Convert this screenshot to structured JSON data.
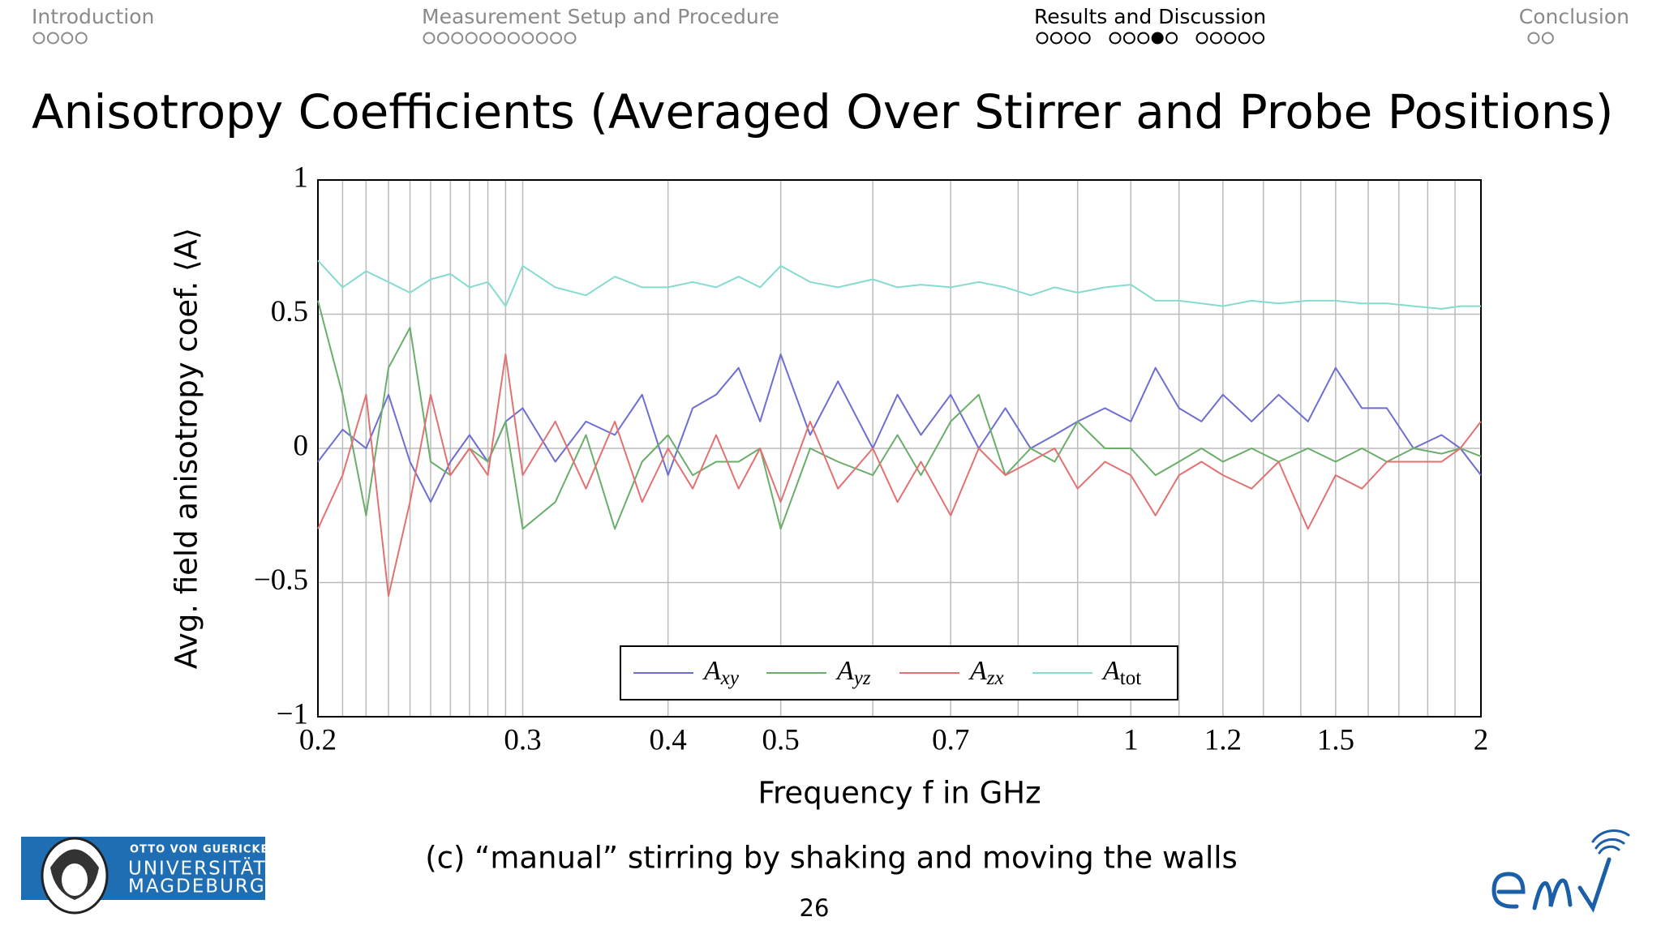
{
  "header": {
    "sections": [
      {
        "title": "Introduction"
      },
      {
        "title": "Measurement Setup and Procedure"
      },
      {
        "title": "Results and Discussion"
      },
      {
        "title": "Conclusion"
      }
    ]
  },
  "title": "Anisotropy Coefficients (Averaged Over Stirrer and Probe Positions)",
  "chart_data": {
    "type": "line",
    "xlabel": "Frequency f in GHz",
    "ylabel": "Avg. field anisotropy coef. ⟨A⟩",
    "x": [
      0.2,
      0.21,
      0.22,
      0.23,
      0.24,
      0.25,
      0.26,
      0.27,
      0.28,
      0.29,
      0.3,
      0.32,
      0.34,
      0.36,
      0.38,
      0.4,
      0.42,
      0.44,
      0.46,
      0.48,
      0.5,
      0.53,
      0.56,
      0.6,
      0.63,
      0.66,
      0.7,
      0.74,
      0.78,
      0.82,
      0.86,
      0.9,
      0.95,
      1,
      1.05,
      1.1,
      1.15,
      1.2,
      1.27,
      1.34,
      1.42,
      1.5,
      1.58,
      1.66,
      1.75,
      1.85,
      1.92,
      2
    ],
    "series": [
      {
        "name": "Axy",
        "color": "#6e6ed2",
        "values": [
          -0.05,
          0.07,
          0.0,
          0.2,
          -0.05,
          -0.2,
          -0.05,
          0.05,
          -0.05,
          0.1,
          0.15,
          -0.05,
          0.1,
          0.05,
          0.2,
          -0.1,
          0.15,
          0.2,
          0.3,
          0.1,
          0.35,
          0.05,
          0.25,
          0.0,
          0.2,
          0.05,
          0.2,
          0.0,
          0.15,
          0.0,
          0.05,
          0.1,
          0.15,
          0.1,
          0.3,
          0.15,
          0.1,
          0.2,
          0.1,
          0.2,
          0.1,
          0.3,
          0.15,
          0.15,
          0.0,
          0.05,
          0.0,
          -0.1
        ]
      },
      {
        "name": "Ayz",
        "color": "#6aae6a",
        "values": [
          0.55,
          0.2,
          -0.25,
          0.3,
          0.45,
          -0.05,
          -0.1,
          0.0,
          -0.05,
          0.1,
          -0.3,
          -0.2,
          0.05,
          -0.3,
          -0.05,
          0.05,
          -0.1,
          -0.05,
          -0.05,
          0.0,
          -0.3,
          0.0,
          -0.05,
          -0.1,
          0.05,
          -0.1,
          0.1,
          0.2,
          -0.1,
          0.0,
          -0.05,
          0.1,
          0.0,
          0.0,
          -0.1,
          -0.05,
          0.0,
          -0.05,
          0.0,
          -0.05,
          0.0,
          -0.05,
          0.0,
          -0.05,
          0.0,
          -0.02,
          0.0,
          -0.03
        ]
      },
      {
        "name": "Azx",
        "color": "#e27272",
        "values": [
          -0.3,
          -0.1,
          0.2,
          -0.55,
          -0.2,
          0.2,
          -0.1,
          0.0,
          -0.1,
          0.35,
          -0.1,
          0.1,
          -0.15,
          0.1,
          -0.2,
          0.0,
          -0.15,
          0.05,
          -0.15,
          0.0,
          -0.2,
          0.1,
          -0.15,
          0.0,
          -0.2,
          -0.05,
          -0.25,
          0.0,
          -0.1,
          -0.05,
          0.0,
          -0.15,
          -0.05,
          -0.1,
          -0.25,
          -0.1,
          -0.05,
          -0.1,
          -0.15,
          -0.05,
          -0.3,
          -0.1,
          -0.15,
          -0.05,
          -0.05,
          -0.05,
          0.0,
          0.1
        ]
      },
      {
        "name": "Atot",
        "color": "#84dccf",
        "values": [
          0.7,
          0.6,
          0.66,
          0.62,
          0.58,
          0.63,
          0.65,
          0.6,
          0.62,
          0.53,
          0.68,
          0.6,
          0.57,
          0.64,
          0.6,
          0.6,
          0.62,
          0.6,
          0.64,
          0.6,
          0.68,
          0.62,
          0.6,
          0.63,
          0.6,
          0.61,
          0.6,
          0.62,
          0.6,
          0.57,
          0.6,
          0.58,
          0.6,
          0.61,
          0.55,
          0.55,
          0.54,
          0.53,
          0.55,
          0.54,
          0.55,
          0.55,
          0.54,
          0.54,
          0.53,
          0.52,
          0.53,
          0.53
        ]
      }
    ],
    "xlim": [
      0.2,
      2
    ],
    "xlog": true,
    "xticks": [
      0.2,
      0.3,
      0.4,
      0.5,
      0.7,
      1,
      1.2,
      1.5,
      2
    ],
    "xgrid_minor": [
      0.21,
      0.22,
      0.23,
      0.24,
      0.25,
      0.26,
      0.27,
      0.28,
      0.29,
      0.6,
      0.8,
      0.9,
      1.1,
      1.3,
      1.4,
      1.6,
      1.7,
      1.8,
      1.9
    ],
    "ylim": [
      -1,
      1
    ],
    "yticks": [
      {
        "value": -1,
        "label": "−1"
      },
      {
        "value": -0.5,
        "label": "−0.5"
      },
      0,
      0.5,
      1
    ],
    "grid": true,
    "legend": "lower center"
  },
  "caption": "(c) “manual” stirring by shaking and moving the walls",
  "page_number": "26",
  "logo": {
    "line1": "OTTO VON GUERICKE",
    "line2": "UNIVERSITÄT",
    "line3": "MAGDEBURG"
  }
}
